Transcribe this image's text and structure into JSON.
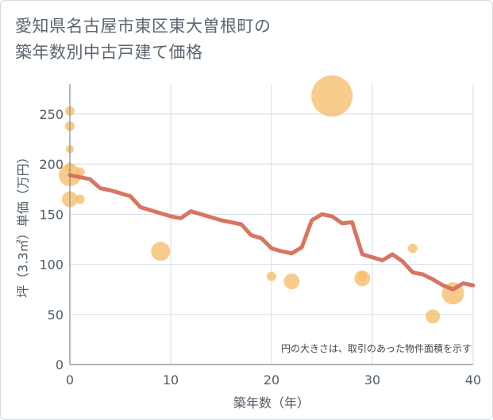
{
  "chart_data": {
    "type": "scatter",
    "title": "愛知県名古屋市東区東大曽根町の\n築年数別中古戸建て価格",
    "xlabel": "築年数（年）",
    "ylabel": "坪（3.3㎡）単価（万円）",
    "xlim": [
      0,
      40
    ],
    "ylim": [
      0,
      280
    ],
    "xticks": [
      0,
      10,
      20,
      30,
      40
    ],
    "yticks": [
      0,
      50,
      100,
      150,
      200,
      250
    ],
    "grid": true,
    "note": "円の大きさは、取引のあった物件面積を示す",
    "colors": {
      "bubble": "#f5bf6e",
      "line": "#d87560",
      "grid": "#d3dde6"
    },
    "bubbles": [
      {
        "x": 0,
        "y": 253,
        "size": 6
      },
      {
        "x": 0,
        "y": 238,
        "size": 6
      },
      {
        "x": 0,
        "y": 215,
        "size": 5
      },
      {
        "x": 0,
        "y": 197,
        "size": 6
      },
      {
        "x": 0,
        "y": 189,
        "size": 14
      },
      {
        "x": 0,
        "y": 165,
        "size": 10
      },
      {
        "x": 1,
        "y": 192,
        "size": 6
      },
      {
        "x": 1,
        "y": 165,
        "size": 6
      },
      {
        "x": 9,
        "y": 113,
        "size": 12
      },
      {
        "x": 20,
        "y": 88,
        "size": 6
      },
      {
        "x": 22,
        "y": 83,
        "size": 10
      },
      {
        "x": 26,
        "y": 268,
        "size": 26
      },
      {
        "x": 29,
        "y": 86,
        "size": 10
      },
      {
        "x": 29,
        "y": 88,
        "size": 6
      },
      {
        "x": 34,
        "y": 116,
        "size": 6
      },
      {
        "x": 36,
        "y": 48,
        "size": 9
      },
      {
        "x": 38,
        "y": 71,
        "size": 14
      }
    ],
    "trend": {
      "x": [
        0,
        1,
        2,
        3,
        4,
        5,
        6,
        7,
        8,
        9,
        10,
        11,
        12,
        13,
        14,
        15,
        16,
        17,
        18,
        19,
        20,
        21,
        22,
        23,
        24,
        25,
        26,
        27,
        28,
        29,
        30,
        31,
        32,
        33,
        34,
        35,
        36,
        37,
        38,
        39,
        40
      ],
      "y": [
        189,
        187,
        185,
        176,
        174,
        171,
        168,
        157,
        154,
        151,
        148,
        146,
        153,
        150,
        147,
        144,
        142,
        140,
        129,
        126,
        116,
        113,
        111,
        117,
        144,
        150,
        148,
        141,
        142,
        110,
        107,
        104,
        110,
        103,
        92,
        90,
        85,
        79,
        75,
        81,
        79
      ]
    }
  }
}
